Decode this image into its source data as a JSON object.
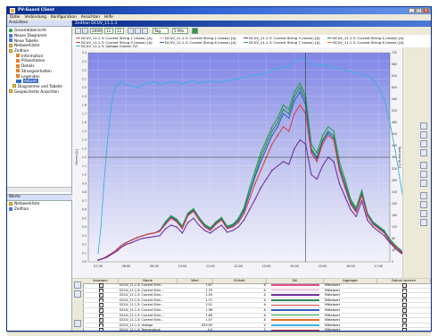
{
  "window": {
    "title": "PV-Guard Client"
  },
  "menu": [
    "Datei",
    "Verbindung",
    "Konfiguration",
    "Ansichten",
    "Hilfe"
  ],
  "left_panel": {
    "title": "Ansichten",
    "items": [
      {
        "label": "Gesamtübersicht",
        "icon": "green-circle-icon"
      },
      {
        "label": "Neues Diagramm",
        "icon": "chart-icon"
      },
      {
        "label": "Neue Tabelle",
        "icon": "table-icon"
      },
      {
        "label": "Netzwerkliste",
        "icon": "folder-icon"
      },
      {
        "label": "Zeithan",
        "icon": "folder-icon"
      },
      {
        "label": "Information",
        "icon": "info-icon"
      },
      {
        "label": "Präsentation",
        "icon": "info-icon"
      },
      {
        "label": "Details",
        "icon": "info-icon"
      },
      {
        "label": "Strangverhalten",
        "icon": "info-icon"
      },
      {
        "label": "Legenden",
        "icon": "info-icon"
      },
      {
        "label": "Aktuell",
        "icon": "chart-icon",
        "selected": true
      },
      {
        "label": "Diagramme und Tabelle",
        "icon": "folder-icon"
      },
      {
        "label": "Gespeicherte Ansichten",
        "icon": "folder-icon"
      }
    ]
  },
  "bottom_panel": {
    "title": "Werte",
    "items": [
      "Netzwerkliste",
      "Zeithan"
    ]
  },
  "document": {
    "title": "Zeithan DCUV_11.1.3",
    "toolbar": {
      "year": "2009",
      "month": "11",
      "day": "11",
      "range": "Tag",
      "interval": "5 Min."
    }
  },
  "legend": [
    {
      "label": "DCUV_11.1.3: Current String 1 (mean) [A]",
      "color": "#e0508a"
    },
    {
      "label": "DCUV_11.1.3: Current String 2 (mean) [A]",
      "color": "#e8a0c0"
    },
    {
      "label": "DCUV_11.1.3: Current String 3 (mean) [A]",
      "color": "#7030a0"
    },
    {
      "label": "DCUV_11.1.3: Current String 4 (mean) [A]",
      "color": "#2e8b57"
    },
    {
      "label": "DCUV_11.1.3: Current String 5 (mean) [A]",
      "color": "#d94040"
    },
    {
      "label": "DCUV_11.1.3: Current String 6 (mean) [A]",
      "color": "#3060c0"
    },
    {
      "label": "DCUV_11.1.3: Current String 7 (mean) [A]",
      "color": "#20a040"
    },
    {
      "label": "DCUV_11.1.3: Current String 8 (mean) [A]",
      "color": "#e07020"
    },
    {
      "label": "DCUV_11.1.3: Voltage (mean) [V]",
      "color": "#3ab0e0"
    }
  ],
  "chart_data": {
    "type": "line",
    "x_ticks": [
      "07:00",
      "08:00",
      "09:00",
      "10:00",
      "11:00",
      "12:00",
      "13:00",
      "14:00",
      "15:00",
      "16:00",
      "17:00"
    ],
    "ylabel": "Strom [A]",
    "y2label": "Spannung [V]",
    "ylim": [
      0,
      2.4
    ],
    "y2lim": [
      0,
      720
    ],
    "y_ticks": [
      "0.0",
      "0.1",
      "0.2",
      "0.3",
      "0.4",
      "0.5",
      "0.6",
      "0.7",
      "0.8",
      "0.9",
      "1.0",
      "1.1",
      "1.2",
      "1.3",
      "1.4",
      "1.5",
      "1.6",
      "1.7",
      "1.8",
      "1.9",
      "2.0",
      "2.1",
      "2.2",
      "2.3",
      "2.4"
    ],
    "y2_ticks": [
      "0",
      "40",
      "80",
      "120",
      "160",
      "200",
      "240",
      "280",
      "320",
      "360",
      "400",
      "440",
      "480",
      "520",
      "560",
      "600",
      "640",
      "680",
      "720"
    ],
    "x": [
      0,
      0.1,
      0.2,
      0.3,
      0.4,
      0.5,
      0.6,
      0.7,
      0.8,
      0.9,
      1.0,
      1.2,
      1.4,
      1.6,
      1.8,
      2.0,
      2.2,
      2.4,
      2.6,
      2.8,
      3.0,
      3.2,
      3.4,
      3.6,
      3.8,
      4.0,
      4.2,
      4.4,
      4.6,
      4.8,
      5.0,
      5.2,
      5.4,
      5.6,
      5.8,
      6.0,
      6.2,
      6.4,
      6.6,
      6.8,
      7.0,
      7.2,
      7.4,
      7.6,
      7.8,
      8.0,
      8.2,
      8.4,
      8.6,
      8.8,
      9.0,
      9.2,
      9.4,
      9.6,
      9.8,
      10.0,
      10.2,
      10.4,
      10.6,
      10.8,
      11.0,
      11.2,
      11.4
    ],
    "series": [
      {
        "name": "String 4",
        "color": "#2e8b57",
        "values": [
          0.02,
          0.03,
          0.04,
          0.06,
          0.08,
          0.1,
          0.12,
          0.15,
          0.18,
          0.2,
          0.22,
          0.25,
          0.28,
          0.3,
          0.32,
          0.33,
          0.36,
          0.45,
          0.52,
          0.48,
          0.4,
          0.55,
          0.6,
          0.5,
          0.42,
          0.38,
          0.45,
          0.5,
          0.4,
          0.42,
          0.48,
          0.6,
          0.8,
          1.0,
          1.2,
          1.35,
          1.5,
          1.6,
          1.75,
          1.7,
          1.9,
          2.0,
          1.85,
          1.3,
          1.2,
          1.4,
          1.5,
          1.45,
          1.1,
          0.9,
          0.7,
          0.6,
          0.8,
          0.55,
          0.45,
          0.4,
          0.35,
          0.25,
          0.18,
          0.12,
          0.08,
          0.05,
          0.02
        ]
      },
      {
        "name": "String 7",
        "color": "#20a040",
        "values": [
          0.02,
          0.03,
          0.04,
          0.06,
          0.08,
          0.1,
          0.12,
          0.15,
          0.18,
          0.2,
          0.22,
          0.25,
          0.28,
          0.3,
          0.32,
          0.33,
          0.36,
          0.46,
          0.53,
          0.49,
          0.41,
          0.56,
          0.61,
          0.51,
          0.43,
          0.39,
          0.46,
          0.51,
          0.41,
          0.43,
          0.5,
          0.62,
          0.85,
          1.05,
          1.25,
          1.4,
          1.55,
          1.65,
          1.8,
          1.75,
          1.95,
          2.05,
          1.9,
          1.35,
          1.25,
          1.45,
          1.55,
          1.5,
          1.15,
          0.95,
          0.72,
          0.62,
          0.82,
          0.56,
          0.46,
          0.41,
          0.36,
          0.26,
          0.19,
          0.13,
          0.08,
          0.05,
          0.02
        ]
      },
      {
        "name": "String 6",
        "color": "#3060c0",
        "values": [
          0.02,
          0.03,
          0.04,
          0.06,
          0.08,
          0.1,
          0.12,
          0.15,
          0.18,
          0.2,
          0.22,
          0.25,
          0.28,
          0.3,
          0.32,
          0.33,
          0.36,
          0.44,
          0.51,
          0.47,
          0.39,
          0.54,
          0.59,
          0.49,
          0.41,
          0.37,
          0.44,
          0.49,
          0.39,
          0.41,
          0.47,
          0.58,
          0.78,
          0.98,
          1.15,
          1.3,
          1.45,
          1.55,
          1.7,
          1.65,
          1.85,
          1.95,
          1.8,
          1.28,
          1.18,
          1.38,
          1.48,
          1.42,
          1.08,
          0.88,
          0.68,
          0.58,
          0.78,
          0.54,
          0.44,
          0.39,
          0.34,
          0.24,
          0.17,
          0.12,
          0.08,
          0.05,
          0.02
        ]
      },
      {
        "name": "String 5",
        "color": "#d94040",
        "values": [
          0.02,
          0.03,
          0.04,
          0.06,
          0.08,
          0.1,
          0.12,
          0.15,
          0.18,
          0.2,
          0.22,
          0.25,
          0.28,
          0.3,
          0.32,
          0.33,
          0.35,
          0.43,
          0.5,
          0.46,
          0.38,
          0.53,
          0.58,
          0.48,
          0.4,
          0.36,
          0.43,
          0.48,
          0.38,
          0.4,
          0.45,
          0.55,
          0.72,
          0.9,
          1.05,
          1.2,
          1.35,
          1.45,
          1.55,
          1.5,
          1.7,
          1.8,
          1.7,
          1.25,
          1.15,
          1.35,
          1.45,
          1.4,
          1.05,
          0.85,
          0.66,
          0.57,
          0.76,
          0.53,
          0.43,
          0.38,
          0.33,
          0.23,
          0.17,
          0.11,
          0.07,
          0.04,
          0.02
        ]
      },
      {
        "name": "String 3",
        "color": "#7030a0",
        "values": [
          0.02,
          0.03,
          0.04,
          0.05,
          0.07,
          0.09,
          0.11,
          0.13,
          0.16,
          0.18,
          0.2,
          0.22,
          0.25,
          0.27,
          0.28,
          0.29,
          0.3,
          0.38,
          0.42,
          0.4,
          0.33,
          0.45,
          0.5,
          0.42,
          0.36,
          0.33,
          0.38,
          0.42,
          0.34,
          0.36,
          0.4,
          0.48,
          0.6,
          0.72,
          0.85,
          0.95,
          1.05,
          1.1,
          1.15,
          1.12,
          1.3,
          1.4,
          1.35,
          1.0,
          0.95,
          1.1,
          1.2,
          1.15,
          0.9,
          0.75,
          0.6,
          0.52,
          0.7,
          0.48,
          0.4,
          0.35,
          0.3,
          0.22,
          0.15,
          0.1,
          0.06,
          0.04,
          0.02
        ]
      },
      {
        "name": "Voltage",
        "color": "#3ab0e0",
        "axis": "right",
        "values": [
          30,
          120,
          260,
          380,
          480,
          560,
          600,
          610,
          620,
          615,
          610,
          605,
          600,
          610,
          615,
          620,
          610,
          615,
          620,
          618,
          612,
          620,
          625,
          615,
          620,
          622,
          618,
          620,
          625,
          628,
          630,
          635,
          640,
          642,
          645,
          650,
          660,
          665,
          670,
          672,
          690,
          700,
          698,
          680,
          675,
          678,
          676,
          670,
          665,
          660,
          655,
          650,
          645,
          640,
          630,
          600,
          560,
          480,
          380,
          260,
          150,
          60,
          20
        ]
      }
    ]
  },
  "table": {
    "columns": [
      "Anzeigen",
      "Name",
      "Wert",
      "Einheit",
      "Stil",
      "Aggregat",
      "Datum sperren"
    ],
    "rows": [
      {
        "show": true,
        "name": "DCUV_11.1.3: Current Strin...",
        "value": "1.67",
        "unit": "A",
        "color": "#e0508a",
        "agg": "Mittelwert"
      },
      {
        "show": true,
        "name": "DCUV_11.1.3: Current Strin...",
        "value": "1.75",
        "unit": "A",
        "color": "#e8a0c0",
        "agg": "Mittelwert"
      },
      {
        "show": true,
        "name": "DCUV_11.1.3: Current Strin...",
        "value": "1.59",
        "unit": "A",
        "color": "#7030a0",
        "agg": "Mittelwert"
      },
      {
        "show": true,
        "name": "DCUV_11.1.3: Current Strin...",
        "value": "1.71",
        "unit": "A",
        "color": "#2e8b57",
        "agg": "Mittelwert"
      },
      {
        "show": true,
        "name": "DCUV_11.1.3: Current Strin...",
        "value": "2.01",
        "unit": "A",
        "color": "#d94040",
        "agg": "Mittelwert"
      },
      {
        "show": true,
        "name": "DCUV_11.1.3: Current Strin...",
        "value": "1.96",
        "unit": "A",
        "color": "#3060c0",
        "agg": "Mittelwert"
      },
      {
        "show": true,
        "name": "DCUV_11.1.3: Current Strin...",
        "value": "1.66",
        "unit": "A",
        "color": "#20a040",
        "agg": "Mittelwert"
      },
      {
        "show": true,
        "name": "DCUV_11.1.3: Current Strin...",
        "value": "1.57",
        "unit": "A",
        "color": "#e07020",
        "agg": "Mittelwert"
      },
      {
        "show": true,
        "name": "DCUV_11.1.3: Voltage",
        "value": "633.59",
        "unit": "V",
        "color": "#3ab0e0",
        "agg": "Mittelwert"
      },
      {
        "show": false,
        "name": "DCUV_11.1.3: Temperature",
        "value": "4.0",
        "unit": "C",
        "color": "#d03030",
        "agg": "Mittelwert"
      },
      {
        "show": false,
        "name": "DCUV_11.1.3: State Switch 1",
        "value": "1.0",
        "unit": "1=ON, 0=OFF",
        "color": "#c080c0",
        "agg": "Mittelwert"
      }
    ]
  }
}
